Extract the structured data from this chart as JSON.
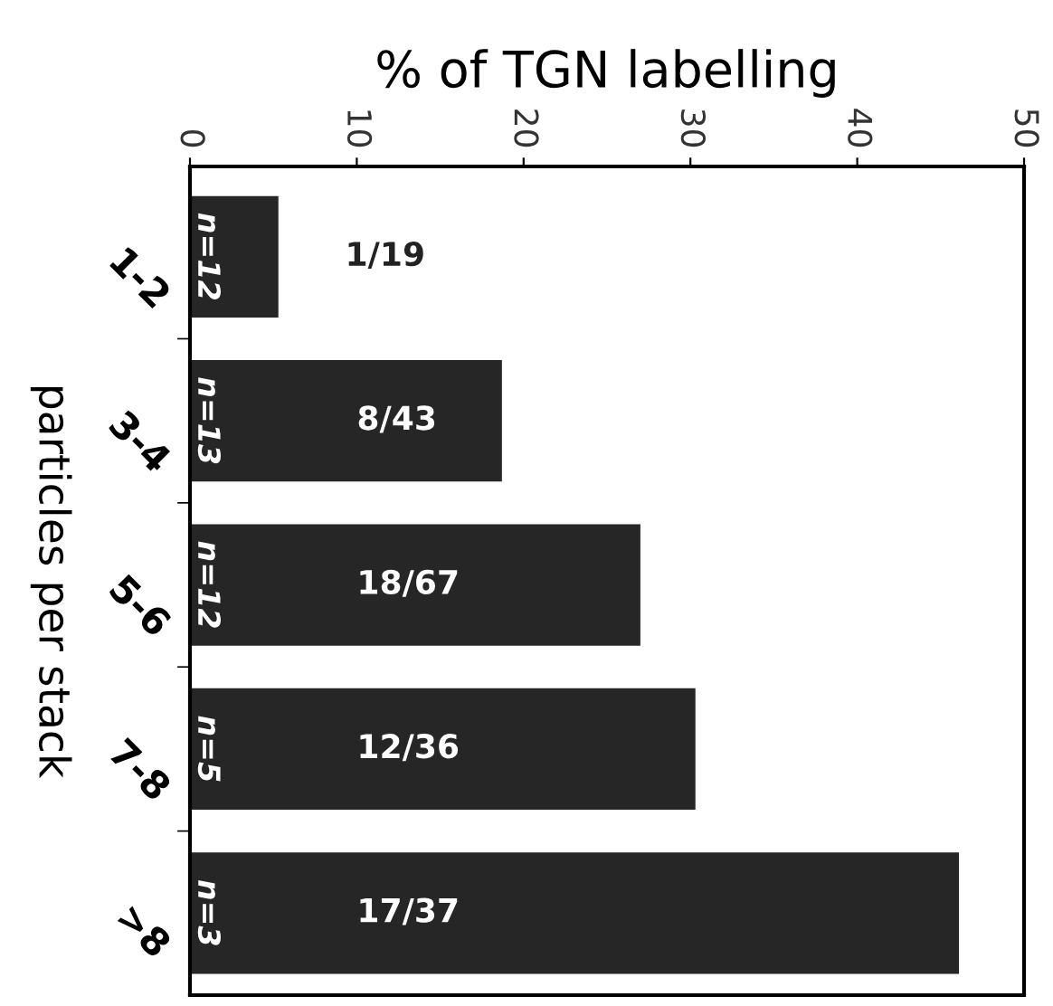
{
  "chart_data": {
    "type": "bar",
    "orientation": "horizontal",
    "xlabel": "% of TGN labelling",
    "ylabel": "particles per stack",
    "categories": [
      "1-2",
      "3-4",
      "5-6",
      "7-8",
      ">8"
    ],
    "values": [
      5.3,
      18.7,
      27.0,
      30.3,
      46.1
    ],
    "color": "#262626",
    "value_labels": [
      "1/19",
      "8/43",
      "18/67",
      "12/36",
      "17/37"
    ],
    "annotations": [
      "n=12",
      "n=13",
      "n=12",
      "n=5",
      "n=3"
    ],
    "xlim": [
      0,
      50
    ],
    "xticks": [
      0,
      10,
      20,
      30,
      40,
      50
    ],
    "grid": false,
    "legend": false
  }
}
